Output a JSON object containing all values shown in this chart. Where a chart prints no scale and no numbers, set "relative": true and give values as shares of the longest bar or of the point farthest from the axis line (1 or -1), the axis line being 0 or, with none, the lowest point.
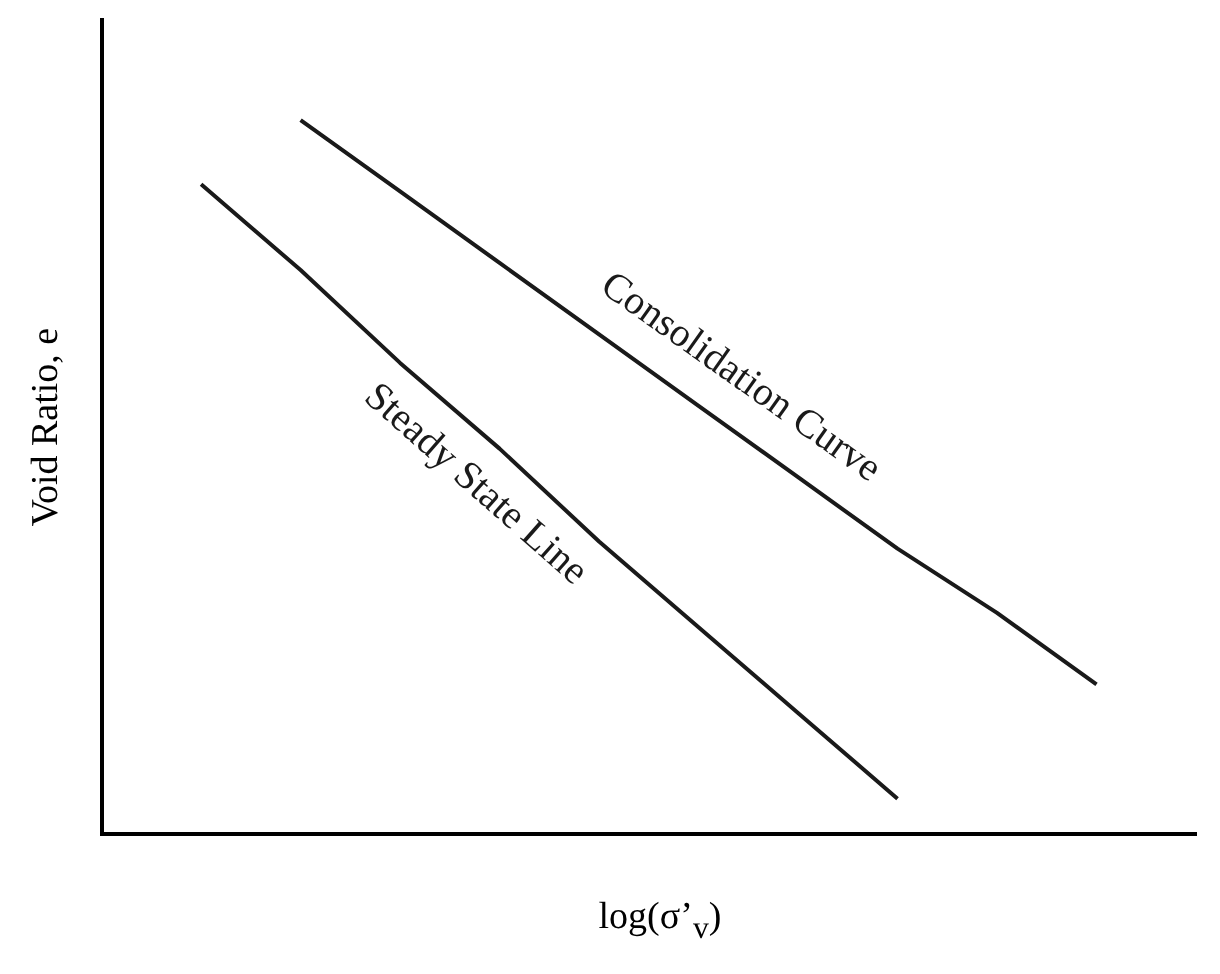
{
  "chart_data": {
    "type": "line",
    "relative": true,
    "xlabel": "log(σ’$_{v}$)",
    "ylabel": "Void Ratio, e",
    "legend": false,
    "marker": "none",
    "categories": [
      null,
      null,
      null,
      null,
      null,
      null,
      null,
      null,
      null,
      null,
      null,
      null
    ],
    "series": [
      {
        "name": "Consolidation Curve",
        "color": "#1a1a1a",
        "values": [
          null,
          null,
          1.0,
          0.9,
          0.8,
          0.7,
          0.6,
          0.5,
          0.4,
          0.31,
          0.21,
          null
        ]
      },
      {
        "name": "Steady State Line",
        "color": "#1a1a1a",
        "values": [
          null,
          0.91,
          0.79,
          0.66,
          0.54,
          0.41,
          0.29,
          0.17,
          0.05,
          null,
          null,
          null
        ]
      }
    ]
  }
}
